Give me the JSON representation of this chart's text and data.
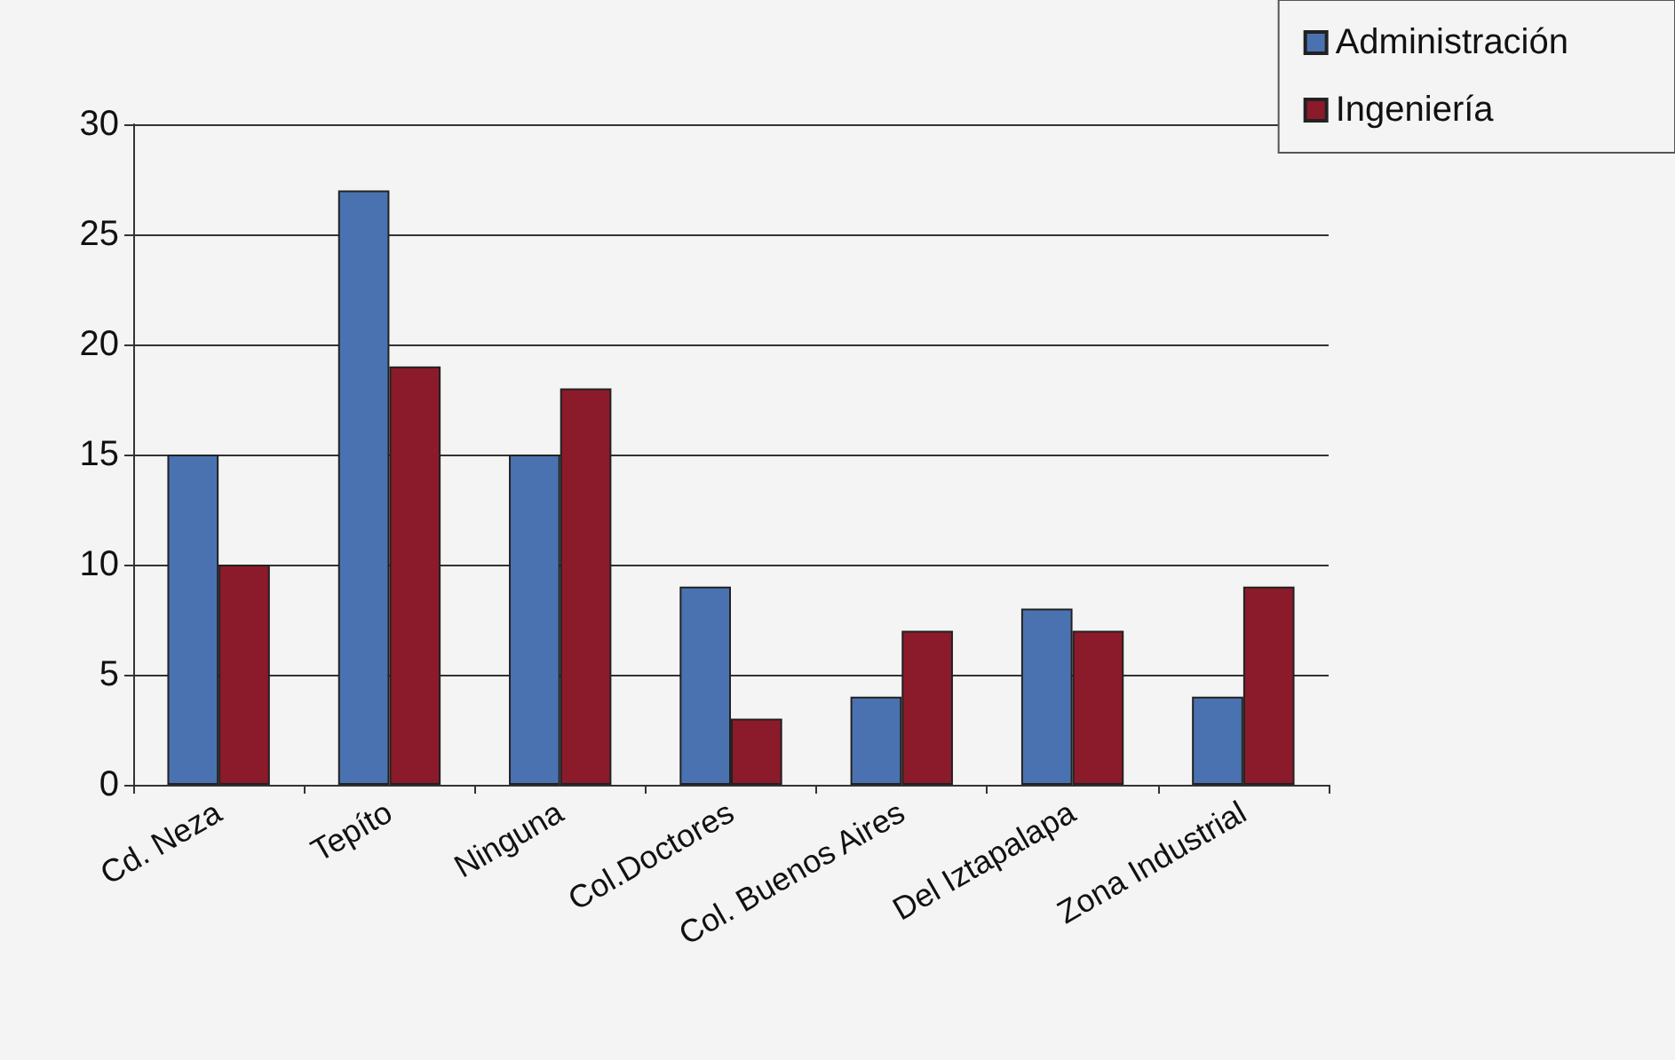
{
  "chart_data": {
    "type": "bar",
    "categories": [
      "Cd. Neza",
      "Tepíto",
      "Ninguna",
      "Col.Doctores",
      "Col. Buenos Aires",
      "Del Iztapalapa",
      "Zona Industrial"
    ],
    "series": [
      {
        "name": "Administración",
        "color": "#4a72b0",
        "values": [
          15,
          27,
          15,
          9,
          4,
          8,
          4
        ]
      },
      {
        "name": "Ingeniería",
        "color": "#8b1a2a",
        "values": [
          10,
          19,
          18,
          3,
          7,
          7,
          9
        ]
      }
    ],
    "ylim": [
      0,
      30
    ],
    "yticks": [
      0,
      5,
      10,
      15,
      20,
      25,
      30
    ],
    "grid": "y",
    "legend": "top right"
  }
}
